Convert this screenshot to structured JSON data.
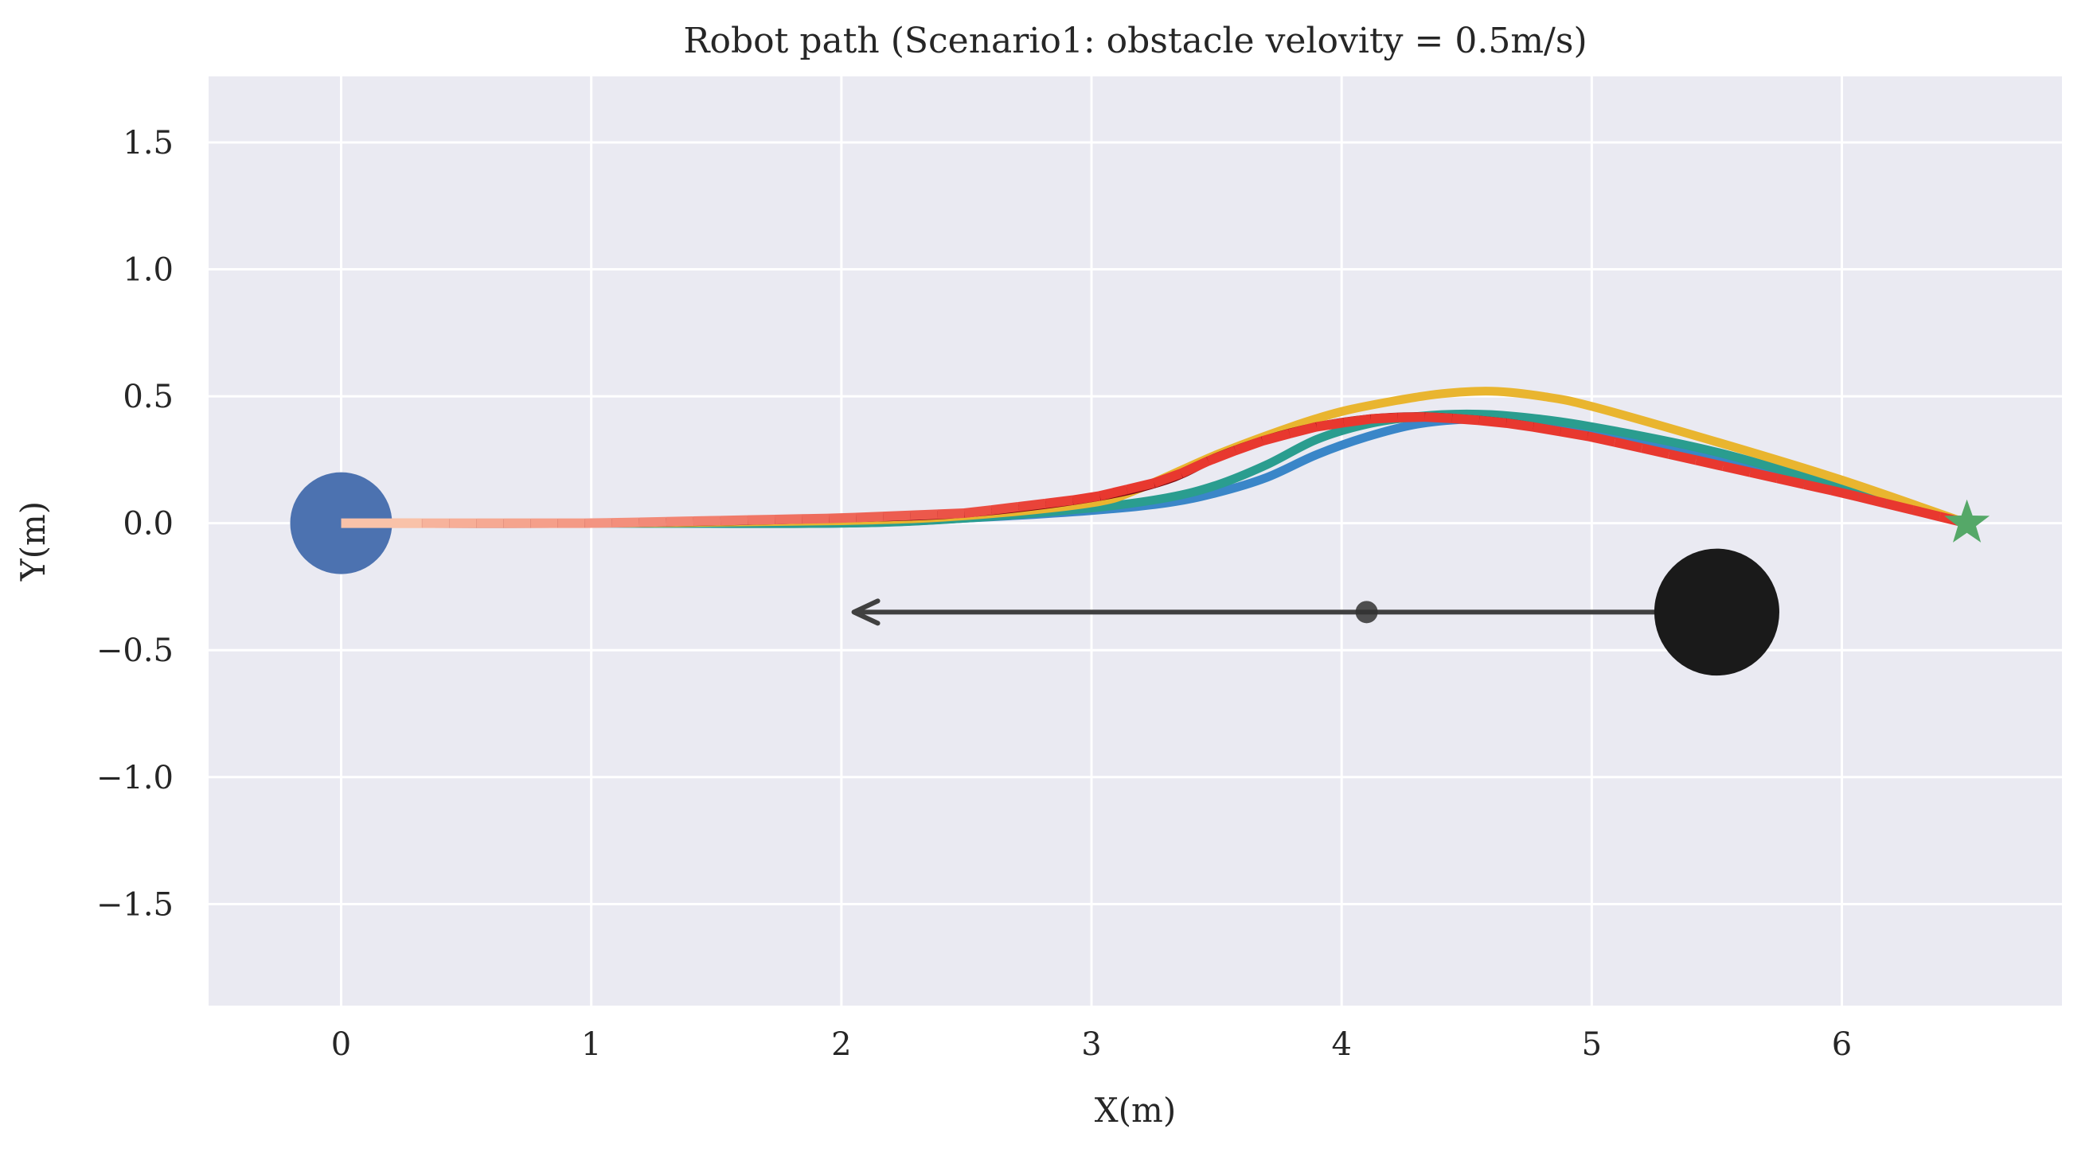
{
  "chart_data": {
    "type": "line",
    "title": "Robot path (Scenario1: obstacle velovity = 0.5m/s)",
    "xlabel": "X(m)",
    "ylabel": "Y(m)",
    "xlim": [
      -0.53,
      6.88
    ],
    "ylim": [
      -1.9,
      1.76
    ],
    "xticks": [
      0,
      1,
      2,
      3,
      4,
      5,
      6
    ],
    "yticks": [
      1.5,
      1.0,
      0.5,
      0.0,
      -0.5,
      -1.0,
      -1.5
    ],
    "ytick_labels": [
      "1.5",
      "1.0",
      "0.5",
      "0.0",
      "−0.5",
      "−1.0",
      "−1.5"
    ],
    "grid": true,
    "background": "#eaeaf2",
    "grid_color": "#ffffff",
    "start": {
      "x": 0,
      "y": 0,
      "color": "#4c72b0"
    },
    "goal": {
      "x": 6.5,
      "y": 0,
      "color": "#55a868",
      "marker": "star"
    },
    "obstacle": {
      "x": 5.5,
      "y": -0.35,
      "radius": 0.25,
      "color": "#1a1a1a",
      "arrow_to_x": 2.05,
      "predicted_marker_x": 4.1,
      "arrow_color": "#404040"
    },
    "series": [
      {
        "color": "#3a86c8",
        "x": [
          0,
          1,
          2,
          2.5,
          3.0,
          3.3,
          3.5,
          3.7,
          3.9,
          4.1,
          4.3,
          4.5,
          4.7,
          5.0,
          5.5,
          6.0,
          6.5
        ],
        "y": [
          0,
          0,
          0,
          0.02,
          0.05,
          0.08,
          0.12,
          0.18,
          0.27,
          0.34,
          0.39,
          0.41,
          0.41,
          0.37,
          0.25,
          0.12,
          0
        ]
      },
      {
        "color": "#2a9d8f",
        "x": [
          0,
          1,
          2,
          2.5,
          3.0,
          3.3,
          3.5,
          3.7,
          3.9,
          4.1,
          4.3,
          4.5,
          4.7,
          5.0,
          5.5,
          6.0,
          6.5
        ],
        "y": [
          0,
          0,
          0,
          0.02,
          0.06,
          0.1,
          0.15,
          0.23,
          0.33,
          0.39,
          0.42,
          0.43,
          0.42,
          0.38,
          0.28,
          0.14,
          0
        ]
      },
      {
        "color": "#e9b52f",
        "x": [
          0,
          1,
          2,
          2.5,
          3.0,
          3.2,
          3.5,
          3.8,
          4.0,
          4.2,
          4.4,
          4.6,
          4.8,
          5.0,
          5.5,
          6.0,
          6.5
        ],
        "y": [
          0,
          0,
          0.01,
          0.03,
          0.08,
          0.14,
          0.27,
          0.38,
          0.44,
          0.48,
          0.51,
          0.52,
          0.5,
          0.46,
          0.32,
          0.17,
          0
        ]
      },
      {
        "color": "#7b0a12",
        "x": [
          0,
          1,
          2,
          2.5,
          3.0,
          3.3,
          3.5,
          3.7,
          3.9,
          4.1,
          4.3,
          4.5,
          4.7,
          5.0
        ],
        "y": [
          0,
          0,
          0.02,
          0.04,
          0.1,
          0.17,
          0.26,
          0.33,
          0.38,
          0.41,
          0.42,
          0.41,
          0.39,
          0.34
        ]
      }
    ],
    "executed_path": {
      "color_from": "#f9c2a9",
      "color_to": "#e8382f",
      "x": [
        0,
        1,
        2,
        2.5,
        3.0,
        3.3,
        3.5,
        3.7,
        3.9,
        4.1,
        4.3,
        4.5,
        4.7,
        5.0,
        5.5,
        6.0,
        6.5
      ],
      "y": [
        0,
        0,
        0.02,
        0.04,
        0.1,
        0.17,
        0.26,
        0.33,
        0.38,
        0.41,
        0.42,
        0.41,
        0.39,
        0.34,
        0.23,
        0.12,
        0
      ]
    }
  }
}
